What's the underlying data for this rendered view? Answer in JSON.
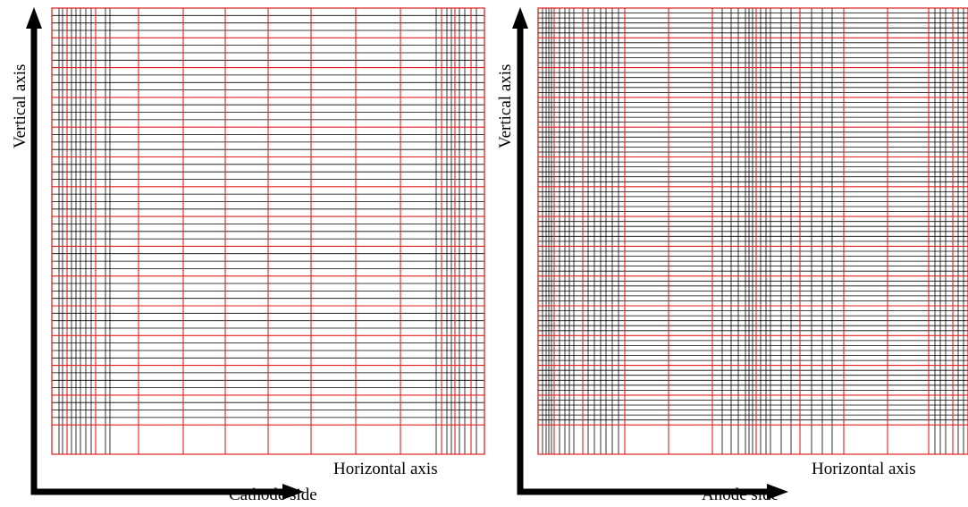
{
  "colors": {
    "grid_major": "#e02020",
    "grid_minor": "#000000",
    "axis": "#000000"
  },
  "panels": [
    {
      "key": "cathode",
      "caption": "Cathode side",
      "vertical_axis_label": "Vertical axis",
      "horizontal_axis_label": "Horizontal axis",
      "mesh": "coarse"
    },
    {
      "key": "anode",
      "caption": "Anode side",
      "vertical_axis_label": "Vertical axis",
      "horizontal_axis_label": "Horizontal axis",
      "mesh": "fine"
    }
  ]
}
